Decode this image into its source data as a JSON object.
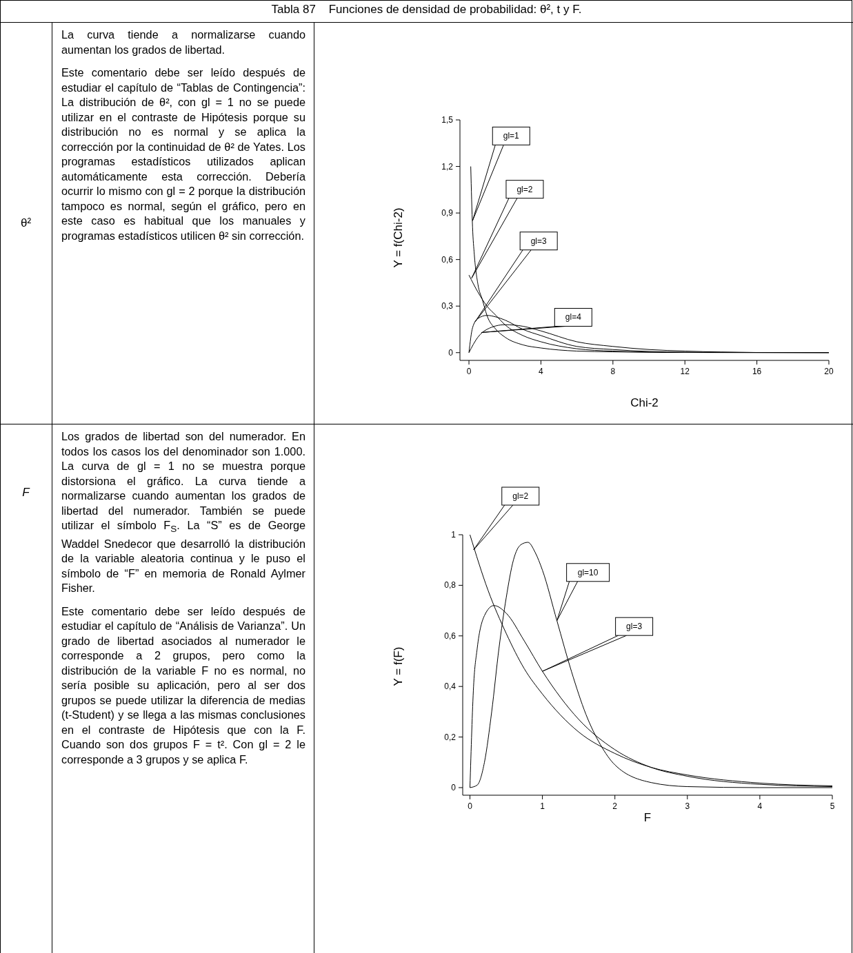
{
  "chart_data": [
    {
      "type": "other",
      "title": "Tabla 87    Funciones de densidad de probabilidad: θ², t y F.",
      "annotations": [
        "θ²",
        "La curva tiende a normalizarse cuando aumentan los grados de libertad.",
        "Este comentario debe ser leído después de estudiar el capítulo de “Tablas de Contingencia”: La distribución de θ², con gl = 1 no se puede utilizar en el contraste de Hipótesis porque su distribución no es normal y se aplica la corrección por la continuidad de θ² de Yates. Los programas estadísticos utilizados aplican automáticamente esta corrección. Debería ocurrir lo mismo con gl = 2 porque la distribución tampoco es normal, según el gráfico, pero en este caso es habitual que los manuales y programas estadísticos utilicen θ² sin corrección."
      ]
    },
    {
      "type": "line",
      "xlabel": "Chi-2",
      "ylabel": "Y = f(Chi-2)",
      "xlim": [
        -0.5,
        20
      ],
      "ylim": [
        -0.05,
        1.5
      ],
      "xticks": [
        {
          "value": 0,
          "label": "0"
        },
        4,
        8,
        12,
        16,
        20
      ],
      "yticks": [
        {
          "value": 0,
          "label": "0"
        },
        {
          "value": 0.3,
          "label": "0,3"
        },
        {
          "value": 0.6,
          "label": "0,6"
        },
        {
          "value": 0.9,
          "label": "0,9"
        },
        {
          "value": 1.2,
          "label": "1,2"
        },
        {
          "value": 1.5,
          "label": "1,5"
        }
      ],
      "series": [
        {
          "color": "#000000",
          "x": [
            0.1,
            0.2,
            0.3,
            0.5,
            0.75,
            1,
            1.5,
            2,
            3,
            4,
            6,
            8,
            12,
            20
          ],
          "values": [
            1.2,
            0.81,
            0.63,
            0.44,
            0.34,
            0.24,
            0.15,
            0.1,
            0.05,
            0.03,
            0.01,
            0.005,
            0.001,
            0
          ]
        },
        {
          "color": "#000000",
          "x": [
            0,
            0.5,
            1,
            1.5,
            2,
            3,
            4,
            6,
            8,
            12,
            20
          ],
          "values": [
            0.5,
            0.39,
            0.3,
            0.24,
            0.18,
            0.11,
            0.07,
            0.025,
            0.01,
            0.001,
            0
          ]
        },
        {
          "color": "#000000",
          "x": [
            0,
            0.2,
            0.5,
            1,
            1.5,
            2,
            3,
            4,
            6,
            8,
            12,
            20
          ],
          "values": [
            0,
            0.16,
            0.22,
            0.24,
            0.23,
            0.21,
            0.15,
            0.11,
            0.04,
            0.02,
            0.003,
            0
          ]
        },
        {
          "color": "#000000",
          "x": [
            0,
            0.5,
            1,
            2,
            3,
            4,
            6,
            8,
            10,
            12,
            16
          ],
          "values": [
            0,
            0.1,
            0.15,
            0.18,
            0.17,
            0.14,
            0.07,
            0.04,
            0.02,
            0.01,
            0.001
          ]
        }
      ],
      "annotations": [
        {
          "text": "gl=1",
          "x": 0.2,
          "y": 0.85
        },
        {
          "text": "gl=2",
          "x": 0.15,
          "y": 0.48
        },
        {
          "text": "gl=3",
          "x": 0.35,
          "y": 0.2
        },
        {
          "text": "gl=4",
          "x": 0.7,
          "y": 0.13
        }
      ]
    },
    {
      "type": "other",
      "annotations": [
        "F",
        "Los grados de libertad son del numerador. En todos los casos los del denominador son 1.000. La curva de gl = 1 no se muestra porque distorsiona el gráfico. La curva tiende a normalizarse cuando aumentan los grados de libertad del numerador. También se puede utilizar el símbolo F$_{S}$. La “S” es de George Waddel Snedecor que desarrolló la distribución de la variable aleatoria continua y le puso el símbolo de “F” en memoria de Ronald Aylmer Fisher.",
        "Este comentario debe ser leído después de estudiar el capítulo de “Análisis de Varianza”. Un grado de libertad asociados al numerador le corresponde a 2 grupos, pero como la distribución de la variable F no es normal, no sería posible su aplicación, pero al ser dos grupos se puede utilizar la diferencia de medias (t-Student) y se llega a las mismas conclusiones en el contraste de Hipótesis que con la F. Cuando son dos grupos F = t². Con gl = 2 le corresponde  a 3 grupos y se aplica F."
      ]
    },
    {
      "type": "line",
      "xlabel": "F",
      "ylabel": "Y = f(F)",
      "xlim": [
        -0.1,
        5
      ],
      "ylim": [
        -0.03,
        1
      ],
      "xticks": [
        {
          "value": 0,
          "label": "0"
        },
        1,
        2,
        3,
        4,
        5
      ],
      "yticks": [
        {
          "value": 0,
          "label": "0"
        },
        {
          "value": 0.2,
          "label": "0,2"
        },
        {
          "value": 0.4,
          "label": "0,4"
        },
        {
          "value": 0.6,
          "label": "0,6"
        },
        {
          "value": 0.8,
          "label": "0,8"
        },
        1
      ],
      "series": [
        {
          "color": "#000000",
          "x": [
            0,
            0.25,
            0.5,
            0.75,
            1,
            1.5,
            2,
            2.5,
            3,
            4,
            5
          ],
          "values": [
            1,
            0.78,
            0.61,
            0.47,
            0.37,
            0.22,
            0.135,
            0.08,
            0.05,
            0.018,
            0.007
          ]
        },
        {
          "color": "#000000",
          "x": [
            0,
            0.05,
            0.1,
            0.2,
            0.33,
            0.5,
            0.75,
            1,
            1.5,
            2,
            2.5,
            3,
            4,
            5
          ],
          "values": [
            0,
            0.4,
            0.55,
            0.68,
            0.72,
            0.69,
            0.58,
            0.46,
            0.27,
            0.15,
            0.08,
            0.045,
            0.013,
            0.004
          ]
        },
        {
          "color": "#000000",
          "x": [
            0,
            0.1,
            0.2,
            0.3,
            0.4,
            0.5,
            0.6,
            0.7,
            0.8,
            0.9,
            1,
            1.2,
            1.4,
            1.6,
            1.8,
            2,
            2.5,
            3,
            4,
            5
          ],
          "values": [
            0,
            0.01,
            0.1,
            0.3,
            0.55,
            0.75,
            0.9,
            0.96,
            0.97,
            0.93,
            0.86,
            0.66,
            0.46,
            0.29,
            0.17,
            0.09,
            0.02,
            0.004,
            0,
            0
          ]
        }
      ],
      "annotations": [
        {
          "text": "gl=2",
          "x": 0.05,
          "y": 0.94
        },
        {
          "text": "gl=10",
          "x": 1.2,
          "y": 0.66
        },
        {
          "text": "gl=3",
          "x": 1,
          "y": 0.46
        }
      ]
    }
  ]
}
